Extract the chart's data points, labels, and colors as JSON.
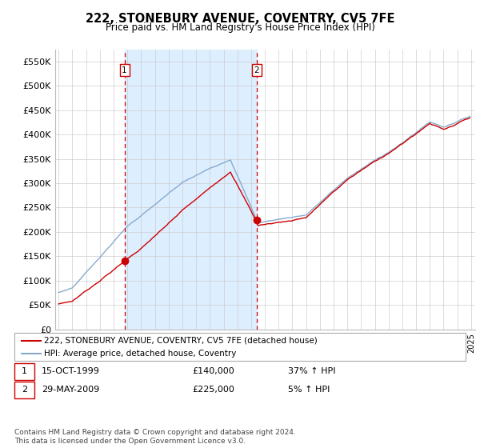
{
  "title": "222, STONEBURY AVENUE, COVENTRY, CV5 7FE",
  "subtitle": "Price paid vs. HM Land Registry's House Price Index (HPI)",
  "legend_line1": "222, STONEBURY AVENUE, COVENTRY, CV5 7FE (detached house)",
  "legend_line2": "HPI: Average price, detached house, Coventry",
  "annotation1_label": "1",
  "annotation1_date": "15-OCT-1999",
  "annotation1_price": "£140,000",
  "annotation1_hpi": "37% ↑ HPI",
  "annotation2_label": "2",
  "annotation2_date": "29-MAY-2009",
  "annotation2_price": "£225,000",
  "annotation2_hpi": "5% ↑ HPI",
  "footer": "Contains HM Land Registry data © Crown copyright and database right 2024.\nThis data is licensed under the Open Government Licence v3.0.",
  "red_color": "#cc0000",
  "blue_color": "#88aacc",
  "shading_color": "#ddeeff",
  "grid_color": "#cccccc",
  "ylim": [
    0,
    575000
  ],
  "yticks": [
    0,
    50000,
    100000,
    150000,
    200000,
    250000,
    300000,
    350000,
    400000,
    450000,
    500000,
    550000
  ],
  "ytick_labels": [
    "£0",
    "£50K",
    "£100K",
    "£150K",
    "£200K",
    "£250K",
    "£300K",
    "£350K",
    "£400K",
    "£450K",
    "£500K",
    "£550K"
  ],
  "sale1_x": 1999.79,
  "sale1_y": 140000,
  "sale2_x": 2009.41,
  "sale2_y": 225000,
  "vline1_x": 1999.79,
  "vline2_x": 2009.41,
  "xmin": 1994.75,
  "xmax": 2025.3
}
